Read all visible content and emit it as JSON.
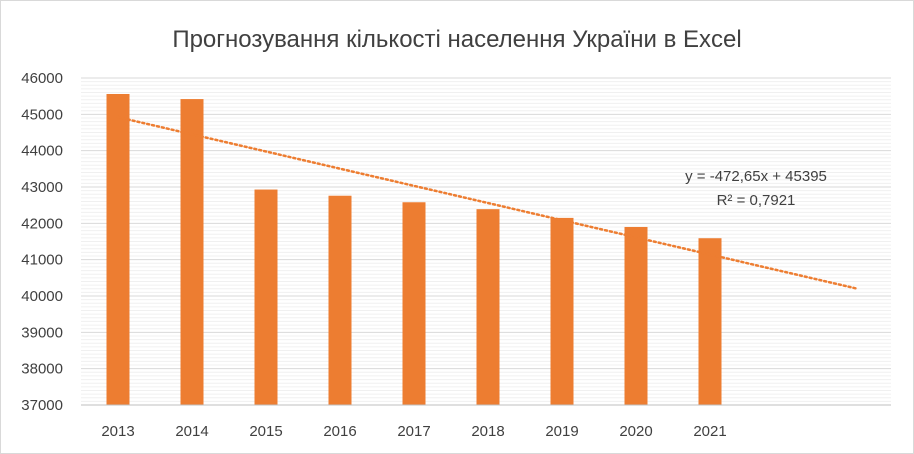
{
  "chart_data": {
    "type": "bar",
    "title": "Прогнозування кількості населення України в Excel",
    "xlabel": "",
    "ylabel": "",
    "categories": [
      "2013",
      "2014",
      "2015",
      "2016",
      "2017",
      "2018",
      "2019",
      "2020",
      "2021"
    ],
    "series": [
      {
        "values": [
          45560,
          45420,
          42930,
          42760,
          42580,
          42390,
          42150,
          41900,
          41590
        ]
      }
    ],
    "ylim": [
      37000,
      46000
    ],
    "yticks": [
      "37000",
      "38000",
      "39000",
      "40000",
      "41000",
      "42000",
      "43000",
      "44000",
      "45000",
      "46000"
    ],
    "grid": true,
    "bar_color": "#ed7d31",
    "trendline": {
      "type": "linear",
      "slope": -472.65,
      "intercept": 45395,
      "forecast_periods": 2,
      "equation": "y = -472,65x + 45395",
      "r_squared": "R² = 0,7921",
      "color": "#ed7d31"
    }
  }
}
